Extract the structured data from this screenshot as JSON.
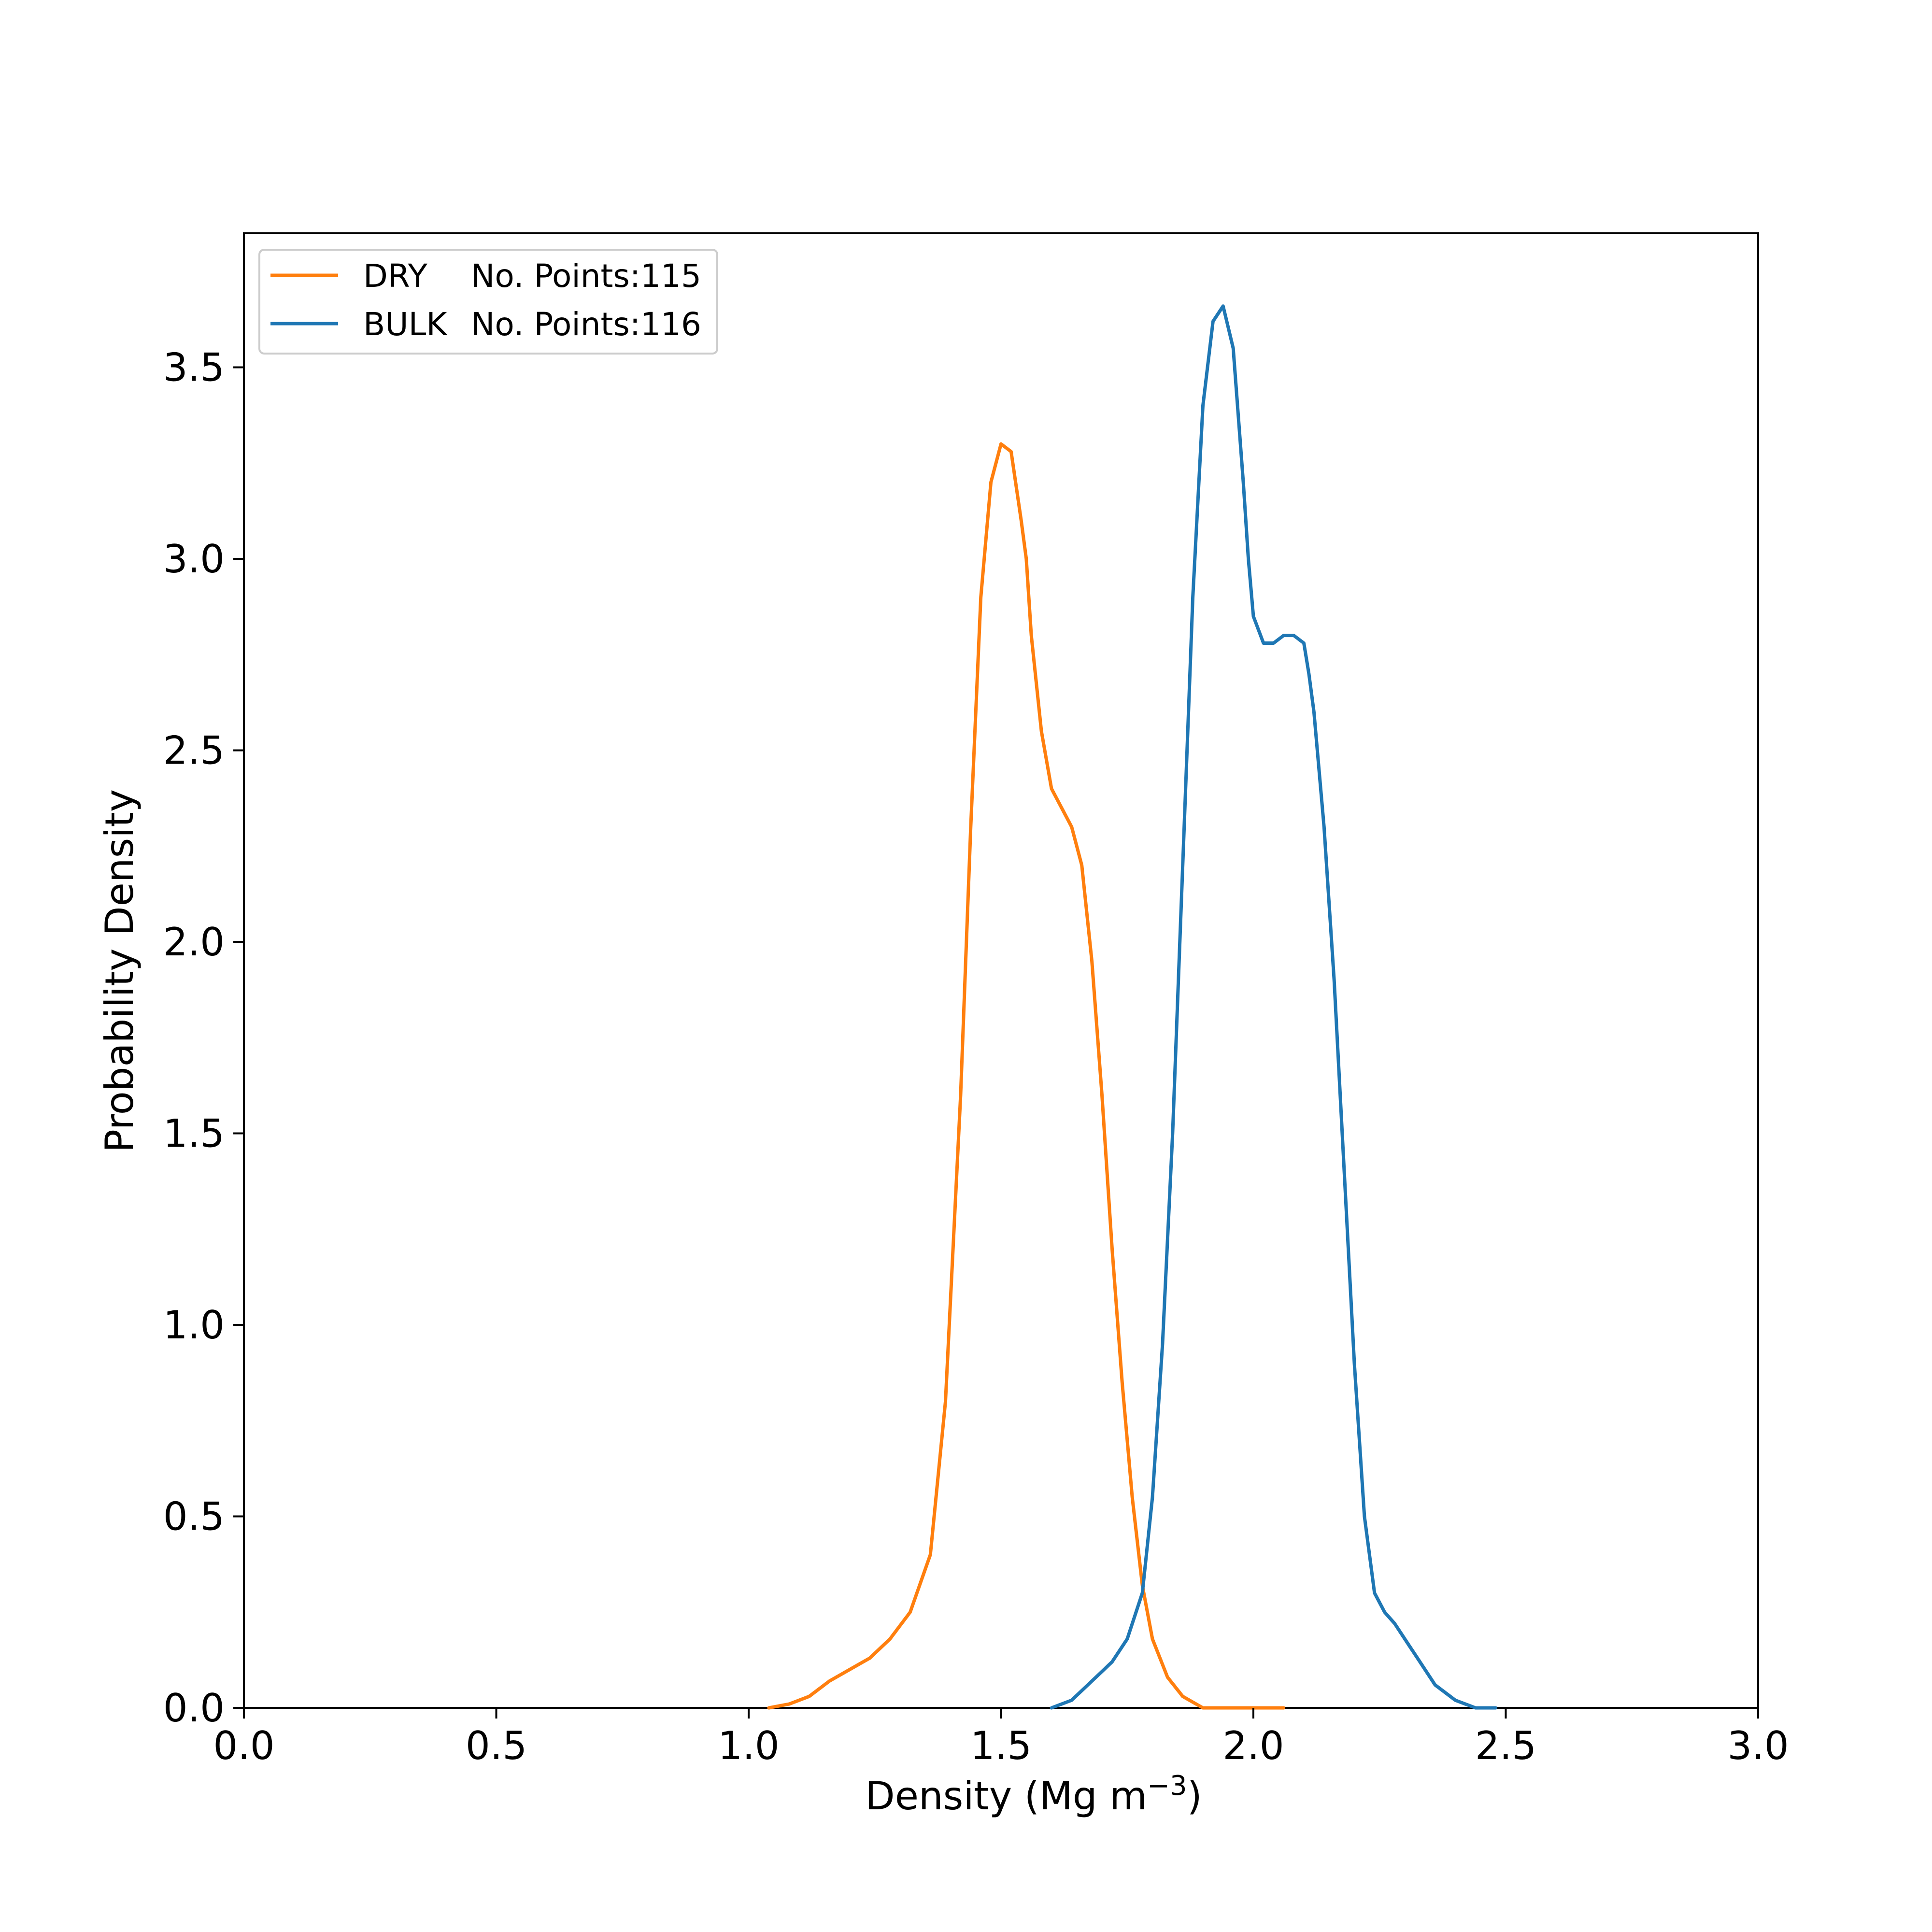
{
  "chart_data": {
    "type": "line",
    "title": "",
    "xlabel": "Density (Mg m",
    "xlabel_superscript": "−3",
    "xlabel_close": ")",
    "ylabel": "Probability Density",
    "xlim": [
      0.0,
      3.0
    ],
    "ylim": [
      0.0,
      3.85
    ],
    "xticks": [
      "0.0",
      "0.5",
      "1.0",
      "1.5",
      "2.0",
      "2.5",
      "3.0"
    ],
    "yticks": [
      "0.0",
      "0.5",
      "1.0",
      "1.5",
      "2.0",
      "2.5",
      "3.0",
      "3.5"
    ],
    "grid": false,
    "legend_position": "top-left",
    "series": [
      {
        "label": "DRY",
        "points_text": "No. Points:115",
        "color": "#ff7f0e",
        "x": [
          1.04,
          1.08,
          1.12,
          1.16,
          1.2,
          1.24,
          1.28,
          1.32,
          1.36,
          1.39,
          1.42,
          1.44,
          1.46,
          1.48,
          1.5,
          1.52,
          1.54,
          1.55,
          1.56,
          1.58,
          1.6,
          1.62,
          1.64,
          1.66,
          1.68,
          1.7,
          1.72,
          1.74,
          1.76,
          1.78,
          1.8,
          1.83,
          1.86,
          1.9,
          1.94,
          1.98,
          2.02,
          2.06
        ],
        "y": [
          0.0,
          0.01,
          0.03,
          0.07,
          0.1,
          0.13,
          0.18,
          0.25,
          0.4,
          0.8,
          1.6,
          2.3,
          2.9,
          3.2,
          3.3,
          3.28,
          3.1,
          3.0,
          2.8,
          2.55,
          2.4,
          2.35,
          2.3,
          2.2,
          1.95,
          1.6,
          1.2,
          0.85,
          0.55,
          0.32,
          0.18,
          0.08,
          0.03,
          0.0,
          0.0,
          0.0,
          0.0,
          0.0
        ]
      },
      {
        "label": "BULK",
        "points_text": "No. Points:116",
        "color": "#1f77b4",
        "x": [
          1.6,
          1.64,
          1.68,
          1.72,
          1.75,
          1.78,
          1.8,
          1.82,
          1.84,
          1.86,
          1.88,
          1.9,
          1.92,
          1.94,
          1.96,
          1.98,
          1.99,
          2.0,
          2.02,
          2.04,
          2.06,
          2.08,
          2.1,
          2.11,
          2.12,
          2.14,
          2.16,
          2.18,
          2.2,
          2.22,
          2.24,
          2.26,
          2.28,
          2.3,
          2.33,
          2.36,
          2.4,
          2.44,
          2.48
        ],
        "y": [
          0.0,
          0.02,
          0.07,
          0.12,
          0.18,
          0.3,
          0.55,
          0.95,
          1.5,
          2.2,
          2.9,
          3.4,
          3.62,
          3.66,
          3.55,
          3.2,
          3.0,
          2.85,
          2.78,
          2.78,
          2.8,
          2.8,
          2.78,
          2.7,
          2.6,
          2.3,
          1.9,
          1.4,
          0.9,
          0.5,
          0.3,
          0.25,
          0.22,
          0.18,
          0.12,
          0.06,
          0.02,
          0.0,
          0.0
        ]
      }
    ]
  }
}
